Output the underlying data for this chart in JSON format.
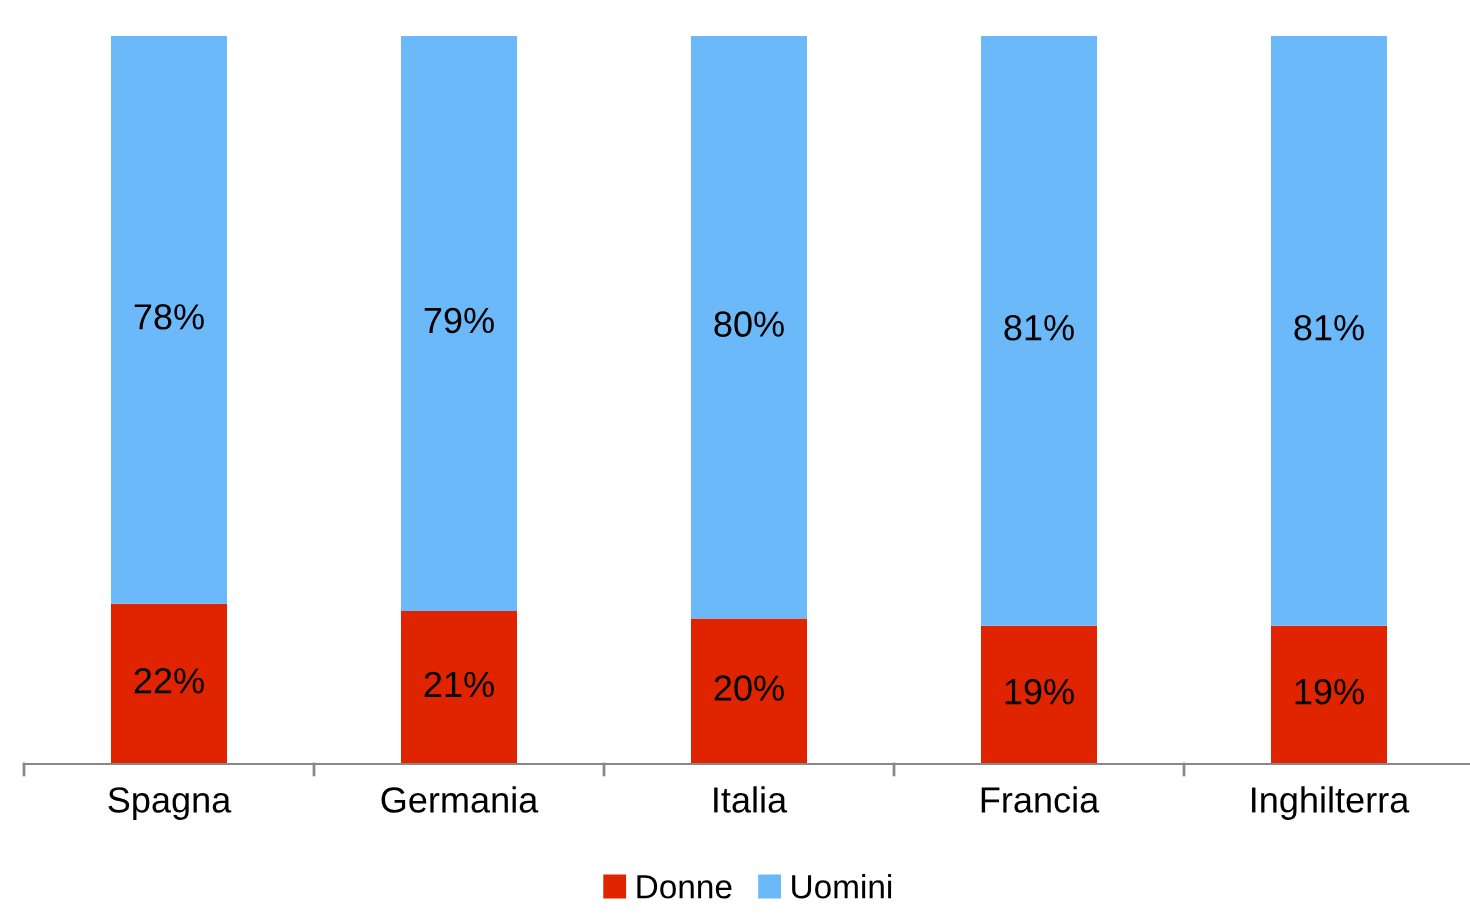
{
  "chart_data": {
    "type": "bar",
    "stacked": true,
    "categories": [
      "Spagna",
      "Germania",
      "Italia",
      "Francia",
      "Inghilterra"
    ],
    "series": [
      {
        "name": "Donne",
        "color": "#e12400",
        "values": [
          22,
          21,
          20,
          19,
          19
        ],
        "value_labels": [
          "22%",
          "21%",
          "20%",
          "19%",
          "19%"
        ]
      },
      {
        "name": "Uomini",
        "color": "#6cb9f9",
        "values": [
          78,
          79,
          80,
          81,
          81
        ],
        "value_labels": [
          "78%",
          "79%",
          "80%",
          "81%",
          "81%"
        ]
      }
    ],
    "legend": "bottom",
    "grid": false
  }
}
